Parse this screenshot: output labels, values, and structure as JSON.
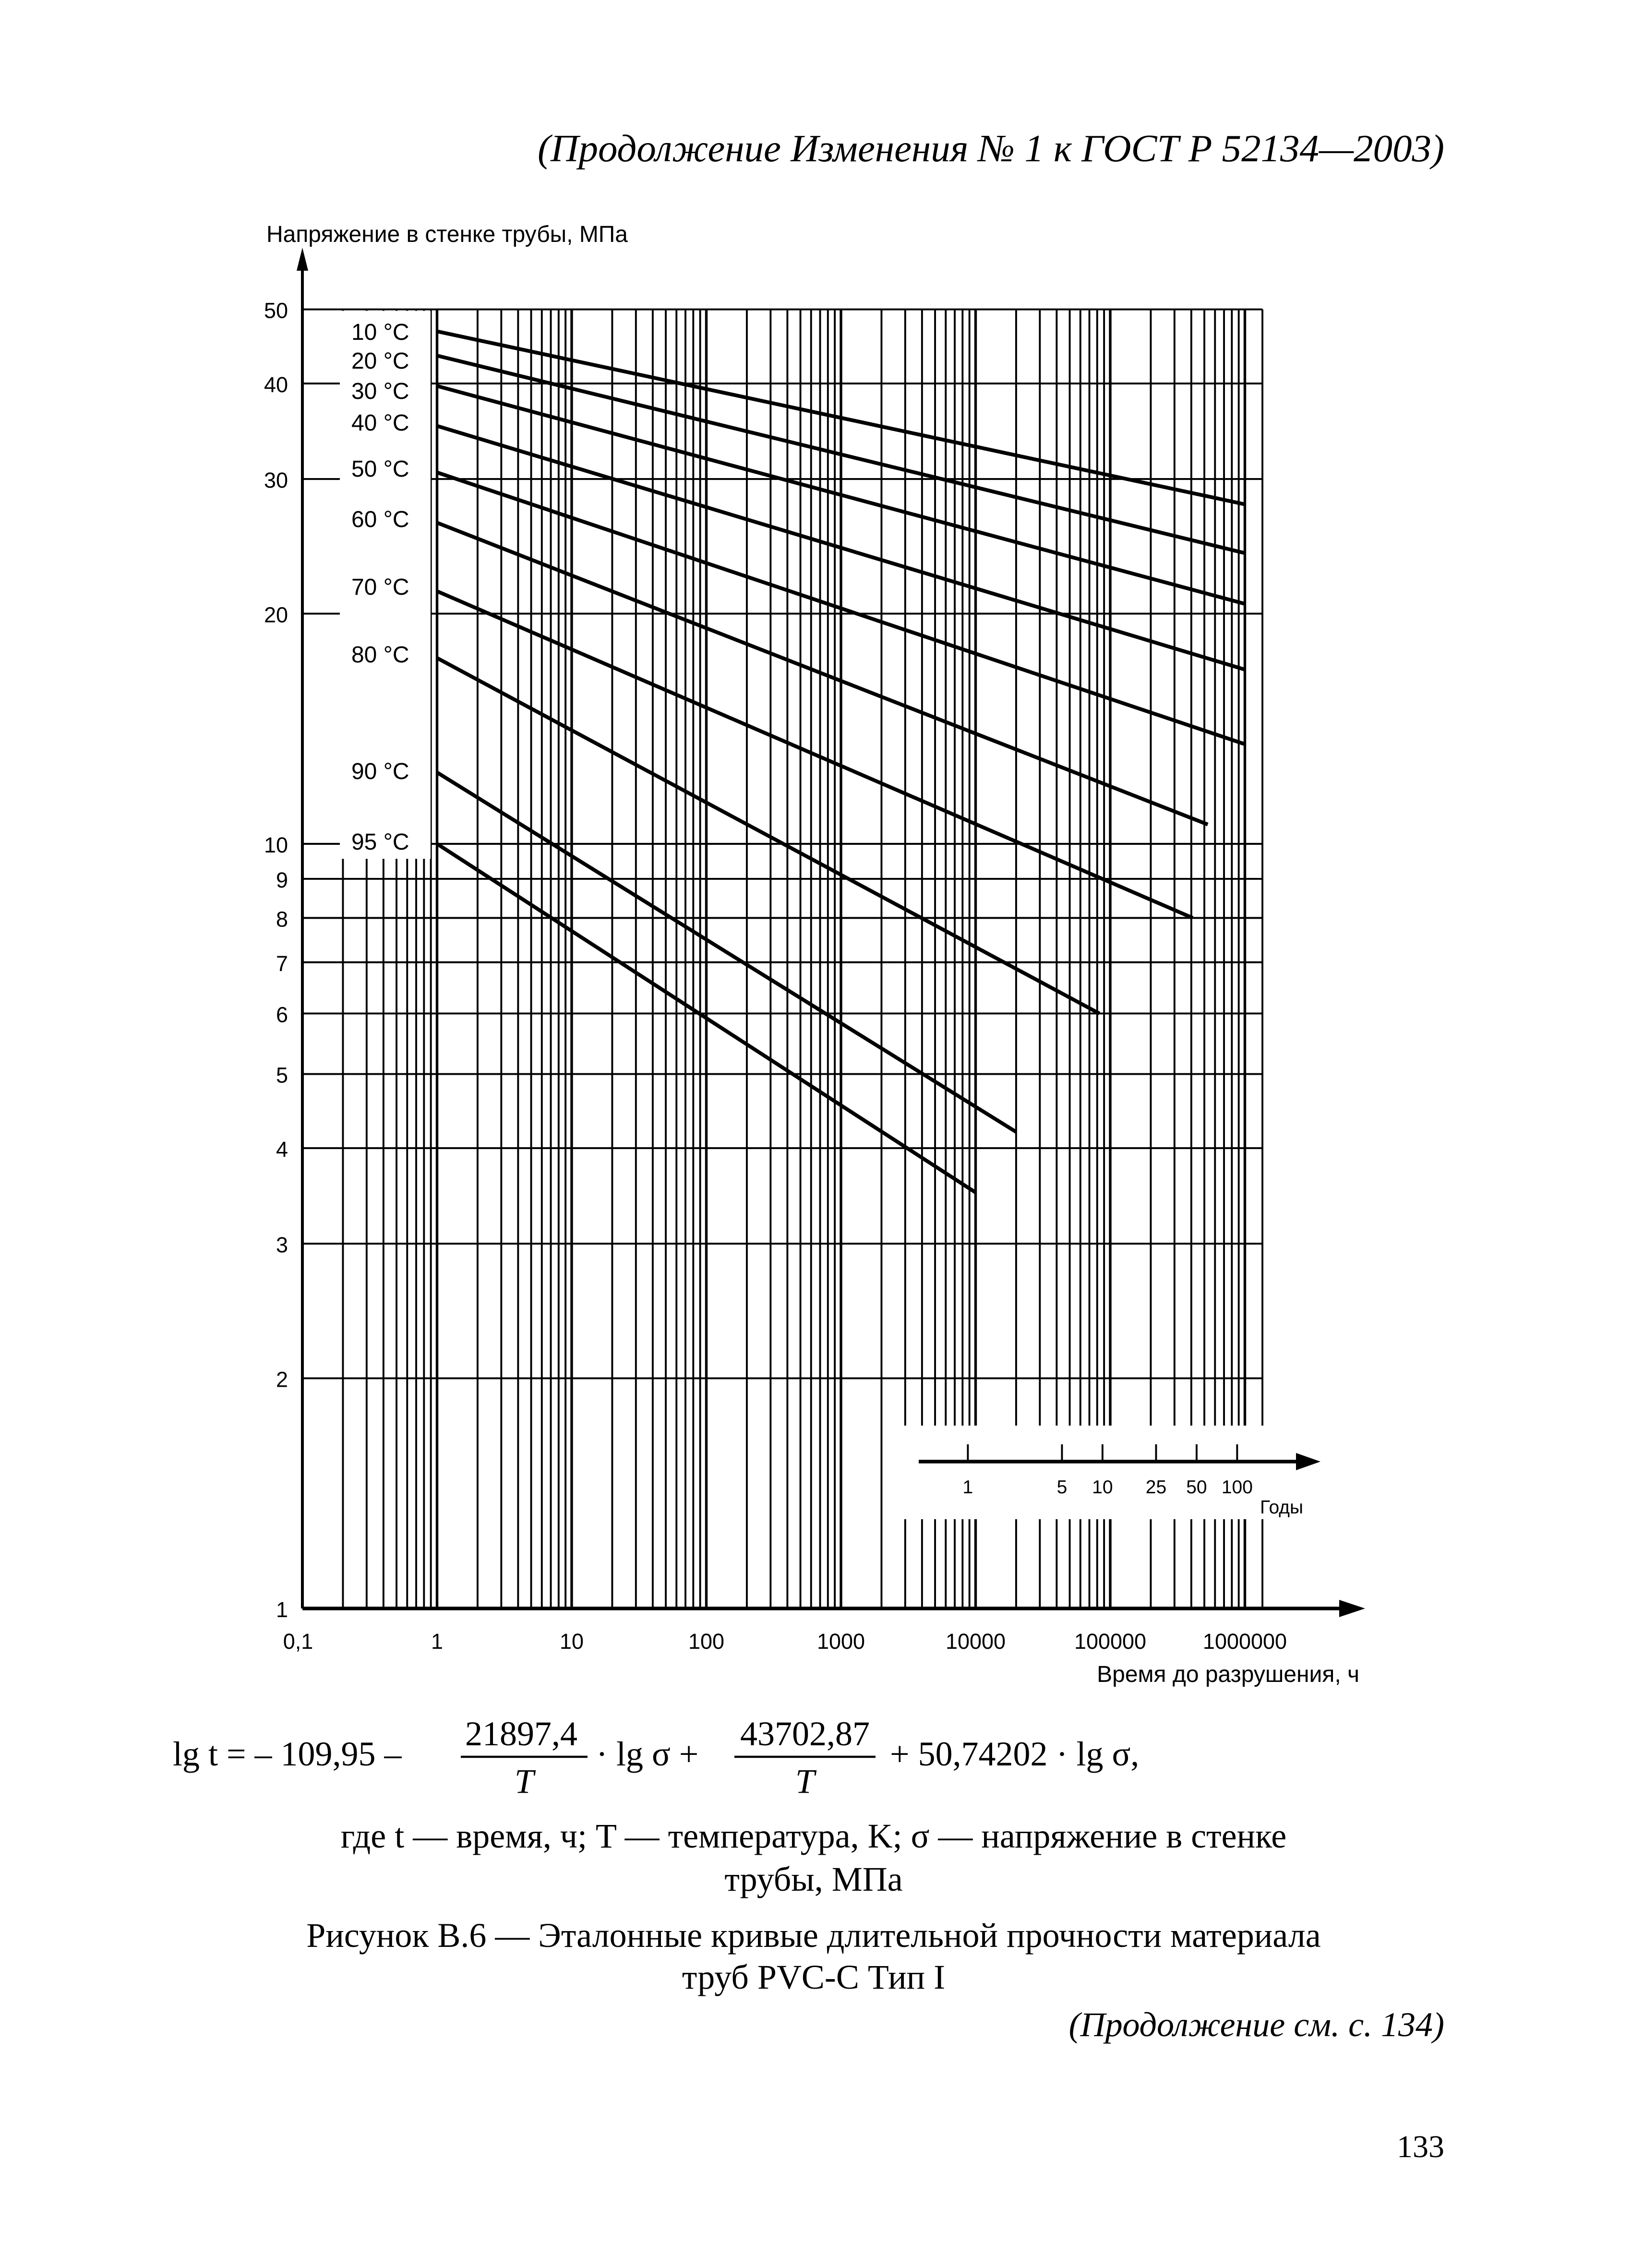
{
  "header": "(Продолжение Изменения № 1 к ГОСТ Р 52134—2003)",
  "chart_data": {
    "type": "line",
    "ylabel": "Напряжение в стенке трубы, МПа",
    "xlabel": "Время до разрушения, ч",
    "x_scale": "log",
    "y_scale": "log",
    "xlim": [
      0.1,
      1000000
    ],
    "ylim": [
      1,
      50
    ],
    "grid": true,
    "x_tick_labels": [
      "0,1",
      "1",
      "10",
      "100",
      "1000",
      "10000",
      "100000",
      "1000000"
    ],
    "x_ticks": [
      0.1,
      1,
      10,
      100,
      1000,
      10000,
      100000,
      1000000
    ],
    "y_tick_labels": [
      "1",
      "2",
      "3",
      "4",
      "5",
      "6",
      "7",
      "8",
      "9",
      "10",
      "20",
      "30",
      "40",
      "50"
    ],
    "y_ticks": [
      1,
      2,
      3,
      4,
      5,
      6,
      7,
      8,
      9,
      10,
      20,
      30,
      40,
      50
    ],
    "secondary_x_axis": {
      "label": "Годы",
      "tick_labels": [
        "1",
        "5",
        "10",
        "25",
        "50",
        "100"
      ],
      "years": [
        1,
        5,
        10,
        25,
        50,
        100
      ]
    },
    "series": [
      {
        "name": "10 °C",
        "x": [
          1,
          1000000
        ],
        "y": [
          46.8,
          27.8
        ]
      },
      {
        "name": "20 °C",
        "x": [
          1,
          1000000
        ],
        "y": [
          43.5,
          24.0
        ]
      },
      {
        "name": "30 °C",
        "x": [
          1,
          1000000
        ],
        "y": [
          39.7,
          20.6
        ]
      },
      {
        "name": "40 °C",
        "x": [
          1,
          1000000
        ],
        "y": [
          35.2,
          16.9
        ]
      },
      {
        "name": "50 °C",
        "x": [
          1,
          1000000
        ],
        "y": [
          30.6,
          13.5
        ]
      },
      {
        "name": "60 °C",
        "x": [
          1,
          530000
        ],
        "y": [
          26.3,
          10.6
        ]
      },
      {
        "name": "70 °C",
        "x": [
          1,
          410000
        ],
        "y": [
          21.4,
          8.0
        ]
      },
      {
        "name": "80 °C",
        "x": [
          1,
          83000
        ],
        "y": [
          17.5,
          6.0
        ]
      },
      {
        "name": "90 °C",
        "x": [
          1,
          20000
        ],
        "y": [
          12.4,
          4.2
        ]
      },
      {
        "name": "95 °C",
        "x": [
          1,
          10000
        ],
        "y": [
          10.0,
          3.5
        ]
      }
    ]
  },
  "formula": {
    "lhs": "lg t = – 109,95 –",
    "frac1_num": "21897,4",
    "frac1_den": "T",
    "mid": "· lg σ +",
    "frac2_num": "43702,87",
    "frac2_den": "T",
    "tail": "+ 50,74202 · lg σ,"
  },
  "legend_note": [
    "где t — время, ч; T — температура, K; σ — напряжение в стенке",
    "трубы,  МПа"
  ],
  "caption": [
    "Рисунок В.6 — Эталонные  кривые  длительной прочности материала",
    "труб PVC-C Тип I"
  ],
  "continuation": "(Продолжение см. с. 134)",
  "page_number": "133"
}
